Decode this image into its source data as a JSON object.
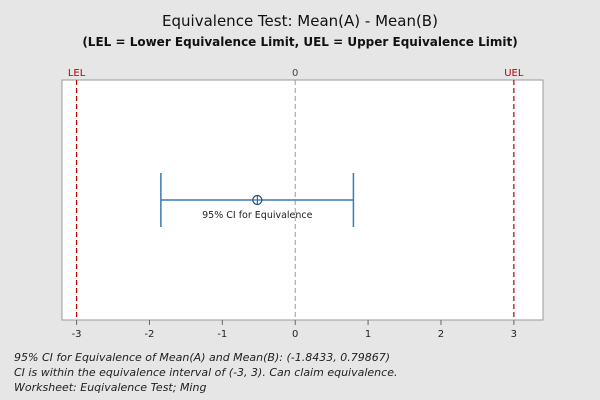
{
  "chart_data": {
    "type": "equivalence-interval",
    "title": "Equivalence Test: Mean(A) - Mean(B)",
    "subtitle": "(LEL = Lower Equivalence Limit, UEL = Upper Equivalence Limit)",
    "xlim": [
      -3.2,
      3.4
    ],
    "xticks": [
      "-3",
      "-2",
      "-1",
      "0",
      "1",
      "2",
      "3"
    ],
    "tick_values": [
      -3,
      -2,
      -1,
      0,
      1,
      2,
      3
    ],
    "reference_lines": [
      {
        "label": "LEL",
        "value": -3,
        "color": "#c00000"
      },
      {
        "label": "0",
        "value": 0,
        "color": "#9a9a9a"
      },
      {
        "label": "UEL",
        "value": 3,
        "color": "#c00000"
      }
    ],
    "ci": {
      "label": "95% CI for Equivalence",
      "lower": -1.8433,
      "upper": 0.79867,
      "estimate": -0.52,
      "color": "#3a7ab0"
    },
    "grid": false
  },
  "footnotes": {
    "line1": "95% CI for Equivalence of Mean(A) and Mean(B): (-1.8433, 0.79867)",
    "line2": "CI is within the equivalence interval of (-3, 3). Can claim equivalence.",
    "line3": "Worksheet: Euqivalence Test; Ming"
  }
}
